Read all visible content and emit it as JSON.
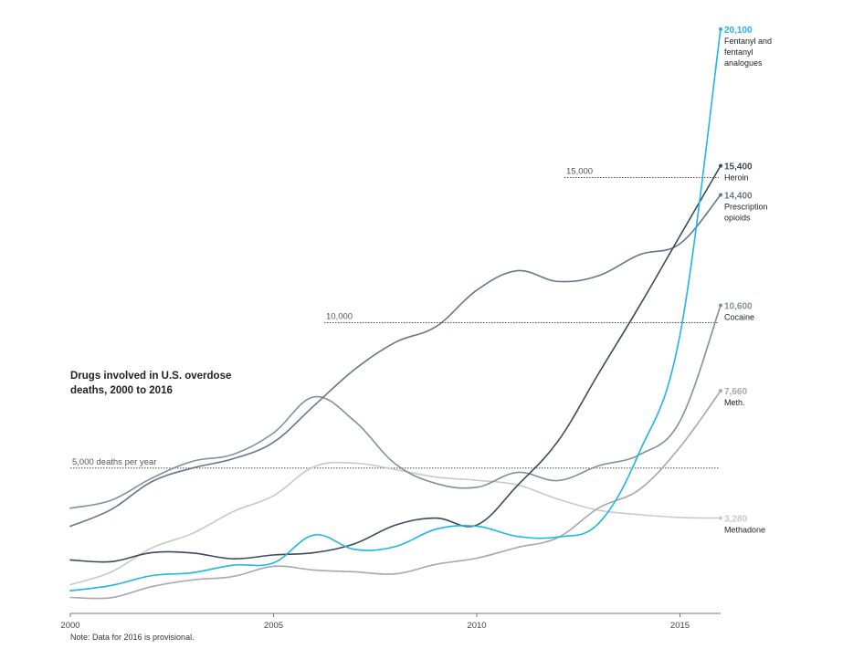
{
  "title": "Drugs involved in U.S. overdose deaths, 2000 to 2016",
  "note": "Note: Data for 2016 is provisional.",
  "chart_data": {
    "type": "line",
    "title": "Drugs involved in U.S. overdose deaths, 2000 to 2016",
    "x": [
      2000,
      2001,
      2002,
      2003,
      2004,
      2005,
      2006,
      2007,
      2008,
      2009,
      2010,
      2011,
      2012,
      2013,
      2014,
      2015,
      2016
    ],
    "x_ticks": [
      2000,
      2005,
      2010,
      2015
    ],
    "x_tick_labels": [
      "2000",
      "2005",
      "2010",
      "2015"
    ],
    "xlim": [
      2000,
      2016
    ],
    "ylim": [
      0,
      20100
    ],
    "grid": false,
    "reference_lines": [
      {
        "value": 5000,
        "label": "5,000 deaths per year"
      },
      {
        "value": 10000,
        "label": "10,000"
      },
      {
        "value": 15000,
        "label": "15,000"
      }
    ],
    "series": [
      {
        "name": "Fentanyl and fentanyl analogues",
        "end_label": "20,100",
        "color": "#1eb6e6",
        "values": [
          780,
          960,
          1300,
          1400,
          1660,
          1740,
          2700,
          2200,
          2300,
          2900,
          3000,
          2650,
          2630,
          3100,
          5540,
          9580,
          20100
        ]
      },
      {
        "name": "Heroin",
        "end_label": "15,400",
        "color": "#3b4a5e",
        "values": [
          1840,
          1780,
          2090,
          2080,
          1880,
          2010,
          2090,
          2400,
          3040,
          3280,
          3040,
          4400,
          5930,
          8260,
          10570,
          12990,
          15400
        ]
      },
      {
        "name": "Prescription opioids",
        "end_label": "14,400",
        "color": "#667789",
        "values": [
          3000,
          3570,
          4530,
          5000,
          5320,
          5890,
          7150,
          8400,
          9330,
          9870,
          11120,
          11790,
          11420,
          11620,
          12340,
          12720,
          14400
        ]
      },
      {
        "name": "Cocaine",
        "end_label": "10,600",
        "color": "#858f99",
        "values": [
          3620,
          3890,
          4650,
          5230,
          5470,
          6210,
          7450,
          6610,
          5140,
          4470,
          4340,
          4850,
          4570,
          5080,
          5460,
          6620,
          10600
        ]
      },
      {
        "name": "Meth.",
        "end_label": "7,660",
        "color": "#a6a8ab",
        "values": [
          550,
          540,
          920,
          1150,
          1270,
          1620,
          1490,
          1430,
          1360,
          1690,
          1900,
          2270,
          2610,
          3630,
          4260,
          5720,
          7660
        ]
      },
      {
        "name": "Methadone",
        "end_label": "3,280",
        "color": "#c9c9c9",
        "values": [
          990,
          1420,
          2250,
          2750,
          3500,
          4050,
          5050,
          5170,
          4950,
          4690,
          4580,
          4420,
          3930,
          3550,
          3400,
          3300,
          3280
        ]
      }
    ]
  }
}
